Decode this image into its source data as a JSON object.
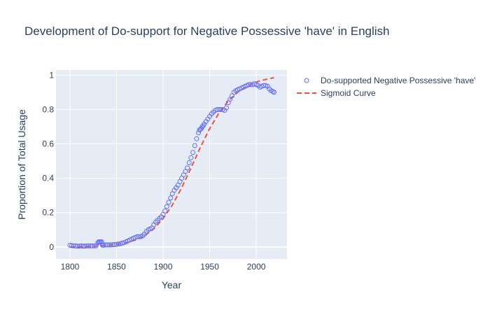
{
  "chart_data": {
    "type": "scatter",
    "title": "Development of Do-support for Negative Possessive 'have' in English",
    "xlabel": "Year",
    "ylabel": "Proportion of Total Usage",
    "xlim": [
      1785,
      2033
    ],
    "ylim": [
      -0.07,
      1.03
    ],
    "xticks": [
      1800,
      1850,
      1900,
      1950,
      2000
    ],
    "yticks": [
      0,
      0.2,
      0.4,
      0.6,
      0.8,
      1
    ],
    "legend": {
      "position": "top-right"
    },
    "grid": true,
    "colors": {
      "plot_bg": "#e5ecf6",
      "grid": "#ffffff",
      "marker": "#636efa",
      "curve": "#ef553b",
      "text": "#2a3f5f"
    },
    "series": [
      {
        "name": "Do-supported Negative Possessive 'have'",
        "kind": "markers",
        "x": [
          1800,
          1802,
          1804,
          1806,
          1808,
          1810,
          1812,
          1814,
          1816,
          1818,
          1820,
          1822,
          1824,
          1826,
          1828,
          1830,
          1831,
          1832,
          1833,
          1834,
          1835,
          1836,
          1838,
          1840,
          1842,
          1844,
          1846,
          1848,
          1850,
          1852,
          1854,
          1856,
          1858,
          1860,
          1862,
          1864,
          1866,
          1868,
          1870,
          1872,
          1874,
          1876,
          1878,
          1880,
          1882,
          1884,
          1886,
          1888,
          1890,
          1892,
          1894,
          1896,
          1898,
          1900,
          1902,
          1904,
          1906,
          1908,
          1910,
          1912,
          1914,
          1916,
          1918,
          1920,
          1922,
          1924,
          1926,
          1928,
          1930,
          1932,
          1934,
          1936,
          1938,
          1939,
          1940,
          1941,
          1942,
          1943,
          1944,
          1946,
          1948,
          1950,
          1952,
          1954,
          1956,
          1958,
          1960,
          1962,
          1964,
          1966,
          1968,
          1970,
          1972,
          1974,
          1976,
          1978,
          1980,
          1982,
          1984,
          1986,
          1988,
          1990,
          1992,
          1994,
          1996,
          1998,
          2000,
          2002,
          2004,
          2006,
          2008,
          2010,
          2012,
          2014,
          2016,
          2018,
          2019
        ],
        "y": [
          0.01,
          0.008,
          0.006,
          0.006,
          0.005,
          0.005,
          0.006,
          0.005,
          0.005,
          0.006,
          0.006,
          0.006,
          0.006,
          0.006,
          0.007,
          0.025,
          0.03,
          0.03,
          0.028,
          0.03,
          0.01,
          0.01,
          0.012,
          0.012,
          0.012,
          0.012,
          0.013,
          0.014,
          0.015,
          0.017,
          0.019,
          0.022,
          0.025,
          0.03,
          0.035,
          0.04,
          0.045,
          0.05,
          0.055,
          0.06,
          0.06,
          0.06,
          0.065,
          0.075,
          0.09,
          0.1,
          0.105,
          0.11,
          0.13,
          0.145,
          0.155,
          0.165,
          0.175,
          0.19,
          0.21,
          0.235,
          0.26,
          0.285,
          0.31,
          0.33,
          0.345,
          0.36,
          0.38,
          0.4,
          0.42,
          0.44,
          0.46,
          0.49,
          0.52,
          0.55,
          0.59,
          0.63,
          0.665,
          0.68,
          0.685,
          0.69,
          0.7,
          0.705,
          0.715,
          0.73,
          0.745,
          0.76,
          0.775,
          0.785,
          0.795,
          0.8,
          0.8,
          0.8,
          0.8,
          0.795,
          0.81,
          0.84,
          0.86,
          0.88,
          0.9,
          0.91,
          0.915,
          0.92,
          0.925,
          0.93,
          0.935,
          0.94,
          0.945,
          0.945,
          0.945,
          0.95,
          0.945,
          0.94,
          0.93,
          0.935,
          0.94,
          0.94,
          0.935,
          0.92,
          0.91,
          0.905,
          0.9
        ]
      },
      {
        "name": "Sigmoid Curve",
        "kind": "dashed-line",
        "x": [
          1800,
          1810,
          1820,
          1830,
          1840,
          1850,
          1860,
          1870,
          1880,
          1890,
          1900,
          1910,
          1920,
          1930,
          1940,
          1950,
          1960,
          1970,
          1980,
          1990,
          2000,
          2010,
          2019
        ],
        "y": [
          0.0,
          0.0,
          0.003,
          0.006,
          0.01,
          0.015,
          0.025,
          0.04,
          0.065,
          0.105,
          0.165,
          0.245,
          0.345,
          0.46,
          0.58,
          0.69,
          0.78,
          0.85,
          0.9,
          0.935,
          0.96,
          0.975,
          0.985
        ]
      }
    ]
  }
}
